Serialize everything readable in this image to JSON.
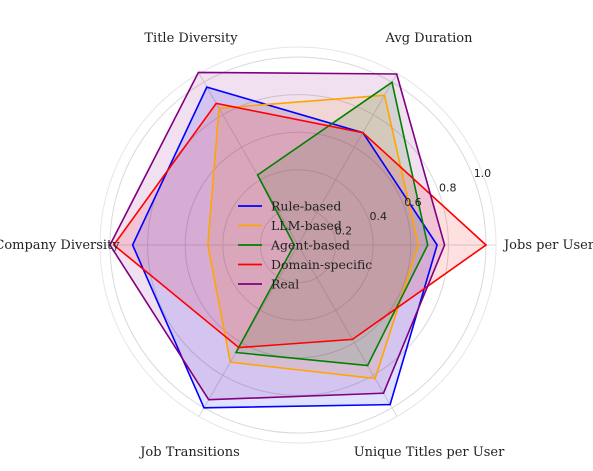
{
  "chart_data": {
    "type": "radar",
    "axes": [
      "Jobs per User",
      "Avg Duration",
      "Title Diversity",
      "Company Diversity",
      "Job Transitions",
      "Unique Titles per User"
    ],
    "radial_ticks": [
      "0.2",
      "0.4",
      "0.6",
      "0.8",
      "1.0"
    ],
    "rlim": [
      0,
      1.0
    ],
    "grid": true,
    "legend_position": "center",
    "series": [
      {
        "name": "Rule-based",
        "color": "#0000ff",
        "values": [
          0.74,
          0.69,
          0.97,
          0.88,
          1.0,
          0.98
        ]
      },
      {
        "name": "LLM-based",
        "color": "#ffa500",
        "values": [
          0.64,
          0.92,
          0.84,
          0.48,
          0.72,
          0.82
        ]
      },
      {
        "name": "Agent-based",
        "color": "#008000",
        "values": [
          0.69,
          1.0,
          0.43,
          0.02,
          0.66,
          0.74
        ]
      },
      {
        "name": "Domain-specific",
        "color": "#ff0000",
        "values": [
          1.0,
          0.69,
          0.87,
          0.98,
          0.63,
          0.58
        ]
      },
      {
        "name": "Real",
        "color": "#800080",
        "values": [
          0.78,
          1.05,
          1.06,
          1.0,
          0.95,
          0.91
        ]
      }
    ]
  }
}
